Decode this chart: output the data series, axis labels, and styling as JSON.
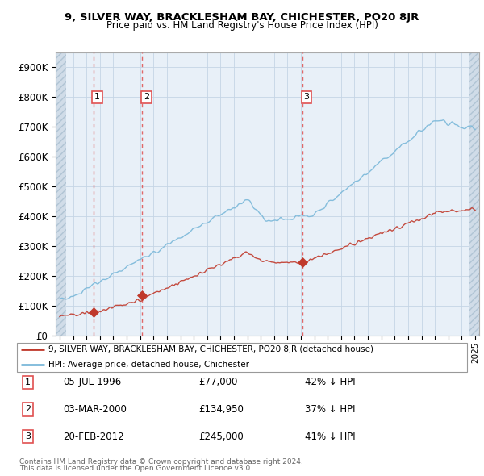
{
  "title1": "9, SILVER WAY, BRACKLESHAM BAY, CHICHESTER, PO20 8JR",
  "title2": "Price paid vs. HM Land Registry's House Price Index (HPI)",
  "xlim": [
    1993.7,
    2025.3
  ],
  "ylim": [
    0,
    950000
  ],
  "yticks": [
    0,
    100000,
    200000,
    300000,
    400000,
    500000,
    600000,
    700000,
    800000,
    900000
  ],
  "ytick_labels": [
    "£0",
    "£100K",
    "£200K",
    "£300K",
    "£400K",
    "£500K",
    "£600K",
    "£700K",
    "£800K",
    "£900K"
  ],
  "hpi_color": "#7ab8d9",
  "price_color": "#c0392b",
  "sale_color": "#c0392b",
  "dashed_color": "#e05050",
  "legend_label_red": "9, SILVER WAY, BRACKLESHAM BAY, CHICHESTER, PO20 8JR (detached house)",
  "legend_label_blue": "HPI: Average price, detached house, Chichester",
  "transactions": [
    {
      "num": 1,
      "date": 1996.51,
      "price": 77000,
      "label": "1",
      "text": "05-JUL-1996",
      "amount": "£77,000",
      "pct": "42% ↓ HPI"
    },
    {
      "num": 2,
      "date": 2000.17,
      "price": 134950,
      "label": "2",
      "text": "03-MAR-2000",
      "amount": "£134,950",
      "pct": "37% ↓ HPI"
    },
    {
      "num": 3,
      "date": 2012.13,
      "price": 245000,
      "label": "3",
      "text": "20-FEB-2012",
      "amount": "£245,000",
      "pct": "41% ↓ HPI"
    }
  ],
  "footer1": "Contains HM Land Registry data © Crown copyright and database right 2024.",
  "footer2": "This data is licensed under the Open Government Licence v3.0.",
  "hatch_left_end": 1994.5,
  "hatch_right_start": 2024.5,
  "plot_bg": "#e8f0f8",
  "hatch_fill": "#d0dce8"
}
